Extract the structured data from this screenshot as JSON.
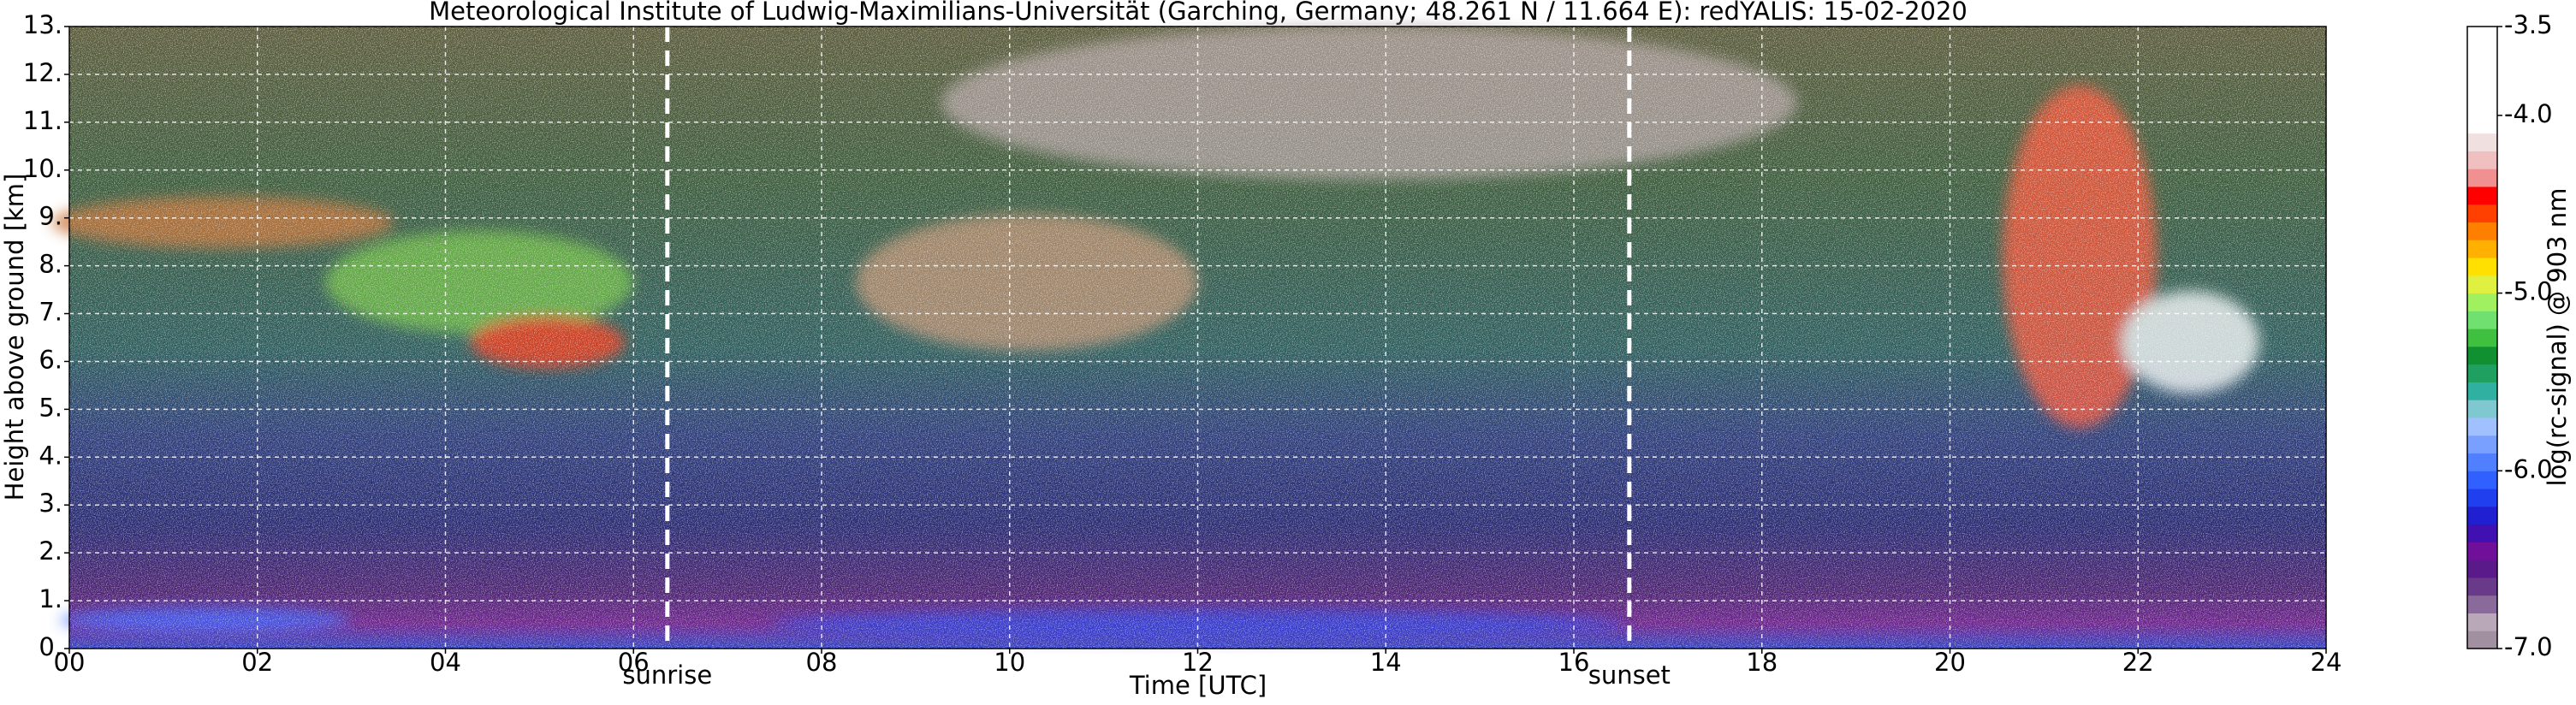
{
  "chart_data": {
    "type": "heatmap",
    "title": "Meteorological Institute of Ludwig-Maximilians-Universität (Garching, Germany; 48.261 N / 11.664 E):     redYALIS: 15-02-2020",
    "x_label": "Time [UTC]",
    "y_label": "Height above ground [km]",
    "xlim": [
      0,
      24
    ],
    "xticks": [
      {
        "value": 0,
        "label": "00"
      },
      {
        "value": 2,
        "label": "02"
      },
      {
        "value": 4,
        "label": "04"
      },
      {
        "value": 6,
        "label": "06"
      },
      {
        "value": 8,
        "label": "08"
      },
      {
        "value": 10,
        "label": "10"
      },
      {
        "value": 12,
        "label": "12"
      },
      {
        "value": 14,
        "label": "14"
      },
      {
        "value": 16,
        "label": "16"
      },
      {
        "value": 18,
        "label": "18"
      },
      {
        "value": 20,
        "label": "20"
      },
      {
        "value": 22,
        "label": "22"
      },
      {
        "value": 24,
        "label": "24"
      }
    ],
    "ylim": [
      0,
      13
    ],
    "yticks": [
      {
        "value": 0,
        "label": "0."
      },
      {
        "value": 1,
        "label": "1."
      },
      {
        "value": 2,
        "label": "2."
      },
      {
        "value": 3,
        "label": "3."
      },
      {
        "value": 4,
        "label": "4."
      },
      {
        "value": 5,
        "label": "5."
      },
      {
        "value": 6,
        "label": "6."
      },
      {
        "value": 7,
        "label": "7."
      },
      {
        "value": 8,
        "label": "8."
      },
      {
        "value": 9,
        "label": "9."
      },
      {
        "value": 10,
        "label": "10."
      },
      {
        "value": 11,
        "label": "11."
      },
      {
        "value": 12,
        "label": "12."
      },
      {
        "value": 13,
        "label": "13."
      }
    ],
    "grid": true,
    "annotations": [
      {
        "x": 6.36,
        "label": "sunrise",
        "color": "#ffffff"
      },
      {
        "x": 16.59,
        "label": "sunset",
        "color": "#ffffff"
      }
    ],
    "colorbar": {
      "label": "log(rc-signal) @ 903 nm",
      "lim": [
        -7.0,
        -3.5
      ],
      "ticks": [
        {
          "value": -3.5,
          "label": "-3.5"
        },
        {
          "value": -4.0,
          "label": "-4.0"
        },
        {
          "value": -5.0,
          "label": "-5.0"
        },
        {
          "value": -6.0,
          "label": "-6.0"
        },
        {
          "value": -7.0,
          "label": "-7.0"
        }
      ],
      "colors": [
        "#a090a0",
        "#b8a8b8",
        "#8a6a9a",
        "#6a3a8a",
        "#5a1a8a",
        "#70109a",
        "#4010b0",
        "#2020d0",
        "#2040f0",
        "#3060ff",
        "#5080ff",
        "#7aa0ff",
        "#a0c0ff",
        "#80c8d0",
        "#30b0a0",
        "#20a060",
        "#109030",
        "#40c040",
        "#70e070",
        "#a0f060",
        "#e0f040",
        "#ffe000",
        "#ffb000",
        "#ff8000",
        "#ff4000",
        "#ff0000",
        "#f09090",
        "#f0c0c0",
        "#f0e0e0",
        "#ffffff",
        "#ffffff",
        "#ffffff",
        "#ffffff",
        "#ffffff",
        "#ffffff"
      ]
    }
  }
}
